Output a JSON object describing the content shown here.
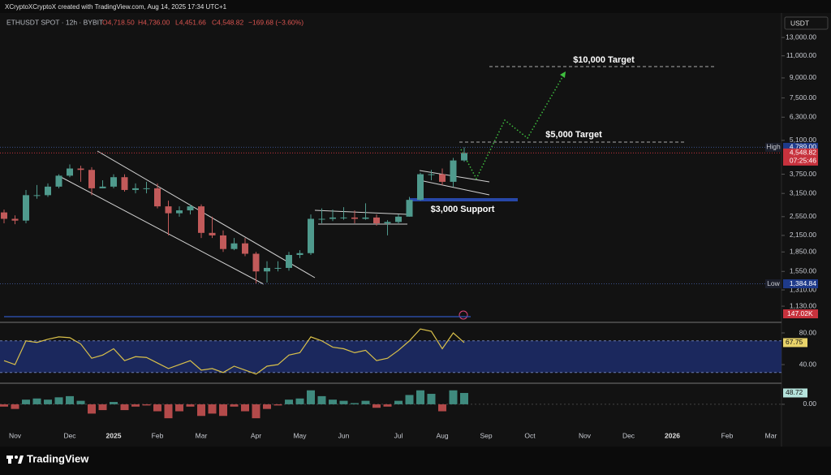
{
  "header": {
    "caption": "XCryptoXCryptoX created with TradingView.com, Aug 14, 2025 17:34 UTC+1",
    "symbol": "ETHUSDT SPOT · 12h · BYBIT",
    "open": "O4,718.50",
    "high": "H4,736.00",
    "low": "L4,451.66",
    "close": "C4,548.82",
    "change": "−169.68 (−3.60%)"
  },
  "brand": "TradingView",
  "chart_data": [
    {
      "type": "candlestick",
      "currency": "USDT",
      "categories": [
        null,
        "Nov",
        null,
        null,
        null,
        null,
        "Dec",
        null,
        null,
        null,
        "2025",
        null,
        null,
        null,
        "Feb",
        null,
        null,
        null,
        "Mar",
        null,
        null,
        null,
        null,
        "Apr",
        null,
        null,
        null,
        "May",
        null,
        null,
        null,
        "Jun",
        null,
        null,
        null,
        null,
        "Jul",
        null,
        null,
        null,
        "Aug",
        null,
        null,
        null,
        "Sep",
        null,
        null,
        null,
        "Oct",
        null,
        null,
        null,
        null,
        "Nov",
        null,
        null,
        null,
        "Dec",
        null,
        null,
        null,
        "2026",
        null,
        null,
        null,
        null,
        "Feb",
        null,
        null,
        null,
        "Mar"
      ],
      "open": [
        2650,
        2500,
        2460,
        3100,
        3100,
        3350,
        3700,
        3950,
        3900,
        3300,
        3350,
        3650,
        3250,
        3300,
        3300,
        2800,
        2630,
        2700,
        2800,
        2200,
        2150,
        1900,
        2000,
        1820,
        1550,
        1600,
        1600,
        1800,
        1830,
        2500,
        2500,
        2530,
        2530,
        2500,
        2530,
        2400,
        2430,
        2550,
        2970,
        3750,
        3750,
        3500,
        4250,
        null,
        null,
        null,
        null,
        null,
        null,
        null,
        null,
        null,
        null,
        null,
        null,
        null,
        null,
        null,
        null,
        null,
        null,
        null,
        null,
        null,
        null,
        null,
        null,
        null,
        null,
        null,
        null
      ],
      "high": [
        2720,
        2580,
        3250,
        3400,
        3450,
        3750,
        4100,
        4050,
        4000,
        3550,
        3750,
        3750,
        3450,
        3500,
        3450,
        2950,
        2800,
        2850,
        2850,
        2550,
        2250,
        2100,
        2100,
        1850,
        1700,
        1700,
        1850,
        1880,
        2600,
        2750,
        2720,
        2780,
        2700,
        2880,
        2600,
        2470,
        2600,
        3050,
        3800,
        3900,
        3950,
        4350,
        4789,
        null,
        null,
        null,
        null,
        null,
        null,
        null,
        null,
        null,
        null,
        null,
        null,
        null,
        null,
        null,
        null,
        null,
        null,
        null,
        null,
        null,
        null,
        null,
        null,
        null,
        null,
        null,
        null
      ],
      "low": [
        2400,
        2380,
        2400,
        3000,
        3050,
        3300,
        3650,
        3500,
        3100,
        3300,
        3300,
        3200,
        3150,
        3150,
        2750,
        2150,
        2550,
        2600,
        2100,
        2100,
        1850,
        1880,
        1780,
        1384.84,
        1400,
        1550,
        1560,
        1750,
        1800,
        2400,
        2450,
        2480,
        2400,
        2480,
        2350,
        2150,
        2400,
        2550,
        2950,
        3550,
        3400,
        3350,
        4200,
        null,
        null,
        null,
        null,
        null,
        null,
        null,
        null,
        null,
        null,
        null,
        null,
        null,
        null,
        null,
        null,
        null,
        null,
        null,
        null,
        null,
        null,
        null,
        null,
        null,
        null,
        null,
        null
      ],
      "close": [
        2500,
        2460,
        3100,
        3100,
        3350,
        3700,
        3950,
        3900,
        3300,
        3350,
        3650,
        3250,
        3300,
        3300,
        2800,
        2630,
        2700,
        2800,
        2200,
        2150,
        1900,
        2000,
        1820,
        1550,
        1600,
        1600,
        1800,
        1830,
        2500,
        2500,
        2530,
        2530,
        2500,
        2530,
        2400,
        2430,
        2550,
        2970,
        3750,
        3750,
        3500,
        4250,
        4548.82,
        null,
        null,
        null,
        null,
        null,
        null,
        null,
        null,
        null,
        null,
        null,
        null,
        null,
        null,
        null,
        null,
        null,
        null,
        null,
        null,
        null,
        null,
        null,
        null,
        null,
        null,
        null,
        null
      ],
      "up_color": "#4f9a8d",
      "down_color": "#c25a5a",
      "log_scale": true,
      "grid": false,
      "ylim": [
        990,
        16000
      ],
      "yticks": [
        {
          "value": 13000,
          "label": "13,000.00"
        },
        {
          "value": 11000,
          "label": "11,000.00"
        },
        {
          "value": 9000,
          "label": "9,000.00"
        },
        {
          "value": 7500,
          "label": "7,500.00"
        },
        {
          "value": 6300,
          "label": "6,300.00"
        },
        {
          "value": 5100,
          "label": "5,100.00"
        },
        {
          "value": 3750,
          "label": "3,750.00"
        },
        {
          "value": 3150,
          "label": "3,150.00"
        },
        {
          "value": 2550,
          "label": "2,550.00"
        },
        {
          "value": 2150,
          "label": "2,150.00"
        },
        {
          "value": 1850,
          "label": "1,850.00"
        },
        {
          "value": 1550,
          "label": "1,550.00"
        },
        {
          "value": 1310,
          "label": "1,310.00"
        },
        {
          "value": 1130,
          "label": "1,130.00"
        }
      ],
      "markers": [
        {
          "label": "High",
          "value": 4789,
          "text": "4,789.00"
        },
        {
          "label": "Low",
          "value": 1384.84,
          "text": "1,384.84"
        }
      ],
      "last_price_label": "4,548.82",
      "countdown": "07:25:46",
      "volume_label": "147.02K",
      "annotations": [
        "$10,000 Target",
        "$5,000 Target",
        "$3,000 Support"
      ]
    },
    {
      "type": "line",
      "color": "#d9c04a",
      "values": [
        45,
        40,
        70,
        68,
        72,
        75,
        74,
        66,
        48,
        52,
        60,
        45,
        50,
        49,
        42,
        35,
        40,
        45,
        33,
        35,
        30,
        38,
        33,
        28,
        38,
        40,
        52,
        55,
        75,
        70,
        62,
        60,
        55,
        58,
        45,
        48,
        58,
        70,
        85,
        82,
        60,
        80,
        67.75,
        null,
        null,
        null,
        null,
        null,
        null,
        null,
        null,
        null,
        null,
        null,
        null,
        null,
        null,
        null,
        null,
        null,
        null,
        null,
        null,
        null,
        null,
        null,
        null,
        null,
        null,
        null,
        null
      ],
      "ylim": [
        18.5,
        92.3
      ],
      "yticks": [
        {
          "value": 80,
          "label": "80.00"
        },
        {
          "value": 40,
          "label": "40.00"
        }
      ],
      "band": [
        30,
        70
      ]
    },
    {
      "type": "bar",
      "up_color": "#3f8a7e",
      "down_color": "#b34a4a",
      "values": [
        -10,
        -20,
        20,
        25,
        20,
        30,
        35,
        15,
        -40,
        -25,
        10,
        -25,
        -10,
        -5,
        -30,
        -60,
        -30,
        -10,
        -50,
        -40,
        -50,
        -10,
        -30,
        -60,
        -20,
        -5,
        20,
        25,
        60,
        35,
        20,
        15,
        5,
        15,
        -15,
        -10,
        15,
        40,
        60,
        45,
        -30,
        60,
        48.72,
        null,
        null,
        null,
        null,
        null,
        null,
        null,
        null,
        null,
        null,
        null,
        null,
        null,
        null,
        null,
        null,
        null,
        null,
        null,
        null,
        null,
        null,
        null,
        null,
        null,
        null,
        null,
        null
      ],
      "ylim": [
        -105,
        87
      ],
      "yticks": [
        {
          "value": 0,
          "label": "0.00"
        }
      ]
    }
  ]
}
